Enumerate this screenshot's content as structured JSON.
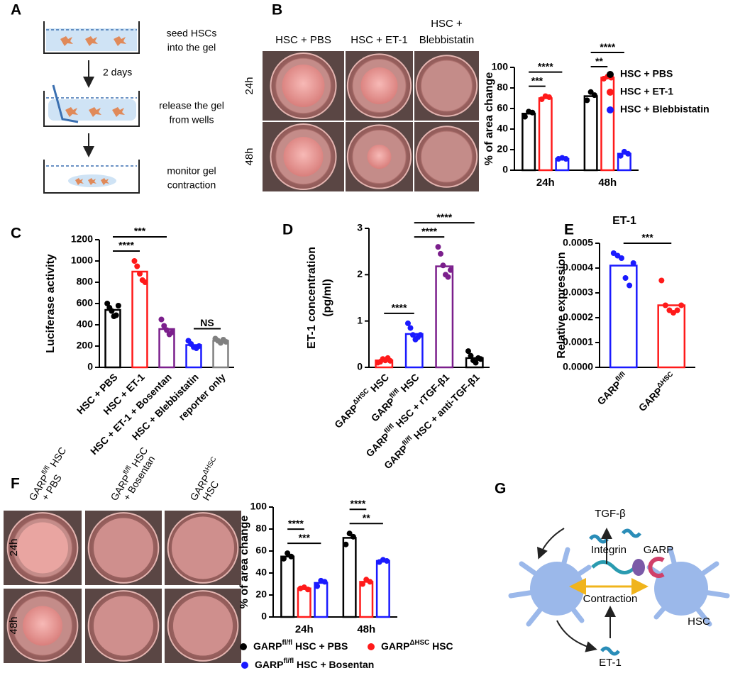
{
  "figure": {
    "panel_letters": [
      "A",
      "B",
      "C",
      "D",
      "E",
      "F",
      "G"
    ],
    "a": {
      "steps": [
        [
          "seed HSCs",
          "into the gel"
        ],
        [
          "release the gel",
          "from wells"
        ],
        [
          "monitor gel",
          "contraction"
        ]
      ],
      "interval": "2 days"
    },
    "b_photos": {
      "columns": [
        [
          "HSC + PBS"
        ],
        [
          "HSC + ET-1"
        ],
        [
          "HSC +",
          "Blebbistatin"
        ]
      ],
      "rows": [
        "24h",
        "48h"
      ]
    },
    "f_photos": {
      "columns": [
        [
          [
            "GARP",
            "fl/fl",
            " HSC"
          ],
          "+ PBS"
        ],
        [
          [
            "GARP",
            "fl/fl",
            " HSC"
          ],
          "+ Bosentan"
        ],
        [
          [
            "GARP",
            "ΔHSC"
          ],
          "HSC"
        ]
      ],
      "rows": [
        "24h",
        "48h"
      ]
    },
    "g": {
      "labels": {
        "tgf": "TGF-β",
        "integrin": "Integrin",
        "garp": "GARP",
        "contraction": "Contraction",
        "hsc": "HSC",
        "et1": "ET-1"
      }
    }
  },
  "chart_data": [
    {
      "type": "bar",
      "ylabel": "% of area change",
      "categories": [
        "24h",
        "48h"
      ],
      "series": [
        {
          "name": "HSC + PBS",
          "color": "#000000",
          "values": [
            55,
            72
          ],
          "points": [
            [
              52,
              57,
              56
            ],
            [
              68,
              76,
              73
            ]
          ]
        },
        {
          "name": "HSC + ET-1",
          "color": "#ff1a1a",
          "values": [
            70,
            90
          ],
          "points": [
            [
              69,
              72,
              71
            ],
            [
              89,
              91,
              90
            ]
          ]
        },
        {
          "name": "HSC + Blebbistatin",
          "color": "#1a1aff",
          "values": [
            11,
            16
          ],
          "points": [
            [
              11,
              12,
              11
            ],
            [
              14,
              18,
              16
            ]
          ]
        }
      ],
      "annotations": [
        {
          "text": "***",
          "category": 0,
          "series": [
            0,
            1
          ]
        },
        {
          "text": "****",
          "category": 0,
          "series": [
            0,
            2
          ]
        },
        {
          "text": "**",
          "category": 1,
          "series": [
            0,
            1
          ]
        },
        {
          "text": "****",
          "category": 1,
          "series": [
            0,
            2
          ]
        }
      ],
      "ylim": [
        0,
        100
      ],
      "yticks": [
        0,
        20,
        40,
        60,
        80,
        100
      ]
    },
    {
      "type": "bar",
      "ylabel": "Luciferase activity",
      "categories": [
        "HSC + PBS",
        "HSC + ET-1",
        "HSC + ET-1 + Bosentan",
        "HSC + Blebbistatin",
        "reporter only"
      ],
      "values": [
        540,
        900,
        360,
        210,
        250
      ],
      "colors": [
        "#000000",
        "#ff1a1a",
        "#7b1f8c",
        "#1a1aff",
        "#808080"
      ],
      "points": [
        [
          600,
          560,
          530,
          480,
          490,
          580
        ],
        [
          1000,
          950,
          880,
          820,
          800
        ],
        [
          450,
          390,
          350,
          310,
          330
        ],
        [
          250,
          220,
          190,
          180,
          200
        ],
        [
          270,
          250,
          230,
          260,
          240
        ]
      ],
      "annotations": [
        {
          "text": "****",
          "bars": [
            0,
            1
          ]
        },
        {
          "text": "***",
          "bars": [
            0,
            2
          ]
        },
        {
          "text": "NS",
          "bars": [
            3,
            4
          ]
        }
      ],
      "ylim": [
        0,
        1200
      ],
      "yticks": [
        0,
        200,
        400,
        600,
        800,
        1000,
        1200
      ]
    },
    {
      "type": "bar",
      "ylabel": [
        "ET-1 concentration",
        "(pg/ml)"
      ],
      "categories": [
        [
          "GARP",
          "ΔHSC",
          " HSC"
        ],
        [
          "GARP",
          "fl/fl",
          " HSC"
        ],
        [
          "GARP",
          "fl/fl",
          " HSC + rTGF-β1"
        ],
        [
          "GARP",
          "fl/fl",
          " HSC + anti-TGF-β1"
        ]
      ],
      "values": [
        0.15,
        0.72,
        2.18,
        0.2
      ],
      "colors": [
        "#ff1a1a",
        "#1a1aff",
        "#7b1f8c",
        "#000000"
      ],
      "points": [
        [
          0.1,
          0.12,
          0.18,
          0.15,
          0.2,
          0.14
        ],
        [
          0.95,
          0.85,
          0.7,
          0.6,
          0.65,
          0.7
        ],
        [
          2.6,
          2.45,
          2.2,
          2.0,
          1.95,
          2.1
        ],
        [
          0.35,
          0.25,
          0.15,
          0.1,
          0.2,
          0.18
        ]
      ],
      "annotations": [
        {
          "text": "****",
          "bars": [
            0,
            1
          ]
        },
        {
          "text": "****",
          "bars": [
            1,
            2
          ]
        },
        {
          "text": "****",
          "bars": [
            1,
            3
          ]
        }
      ],
      "ylim": [
        0,
        3
      ],
      "yticks": [
        0,
        1,
        2,
        3
      ]
    },
    {
      "type": "bar",
      "title": "ET-1",
      "ylabel": "Relative expression",
      "categories": [
        [
          "GARP",
          "fl/fl"
        ],
        [
          "GARP",
          "ΔHSC"
        ]
      ],
      "values": [
        0.00041,
        0.00025
      ],
      "colors": [
        "#1a1aff",
        "#ff1a1a"
      ],
      "points": [
        [
          0.00046,
          0.00045,
          0.00044,
          0.00036,
          0.00033,
          0.00042
        ],
        [
          0.00035,
          0.00025,
          0.00023,
          0.00022,
          0.00023,
          0.00025
        ]
      ],
      "annotations": [
        {
          "text": "***",
          "bars": [
            0,
            1
          ]
        }
      ],
      "ylim": [
        0,
        0.0005
      ],
      "yticks": [
        {
          "value": 0,
          "label": "0.0000"
        },
        {
          "value": 0.0001,
          "label": "0.0001"
        },
        {
          "value": 0.0002,
          "label": "0.0002"
        },
        {
          "value": 0.0003,
          "label": "0.0003"
        },
        {
          "value": 0.0004,
          "label": "0.0004"
        },
        {
          "value": 0.0005,
          "label": "0.0005"
        }
      ]
    },
    {
      "type": "bar",
      "ylabel": "% of area change",
      "categories": [
        "24h",
        "48h"
      ],
      "series": [
        {
          "name": [
            "GARP",
            "fl/fl",
            " HSC + PBS"
          ],
          "color": "#000000",
          "values": [
            55,
            72
          ],
          "points": [
            [
              53,
              58,
              55
            ],
            [
              66,
              76,
              73
            ]
          ]
        },
        {
          "name": [
            "GARP",
            "ΔHSC",
            " HSC"
          ],
          "color": "#ff1a1a",
          "values": [
            26,
            32
          ],
          "points": [
            [
              26,
              27,
              25
            ],
            [
              30,
              34,
              32
            ]
          ]
        },
        {
          "name": [
            "GARP",
            "fl/fl",
            " HSC + Bosentan"
          ],
          "color": "#1a1aff",
          "values": [
            31,
            51
          ],
          "points": [
            [
              28,
              33,
              32
            ],
            [
              50,
              52,
              51
            ]
          ]
        }
      ],
      "annotations": [
        {
          "text": "***",
          "category": 0,
          "series": [
            0,
            2
          ]
        },
        {
          "text": "****",
          "category": 0,
          "series": [
            0,
            1
          ]
        },
        {
          "text": "**",
          "category": 1,
          "series": [
            0,
            2
          ]
        },
        {
          "text": "****",
          "category": 1,
          "series": [
            0,
            1
          ]
        }
      ],
      "ylim": [
        0,
        100
      ],
      "yticks": [
        0,
        20,
        40,
        60,
        80,
        100
      ]
    }
  ]
}
